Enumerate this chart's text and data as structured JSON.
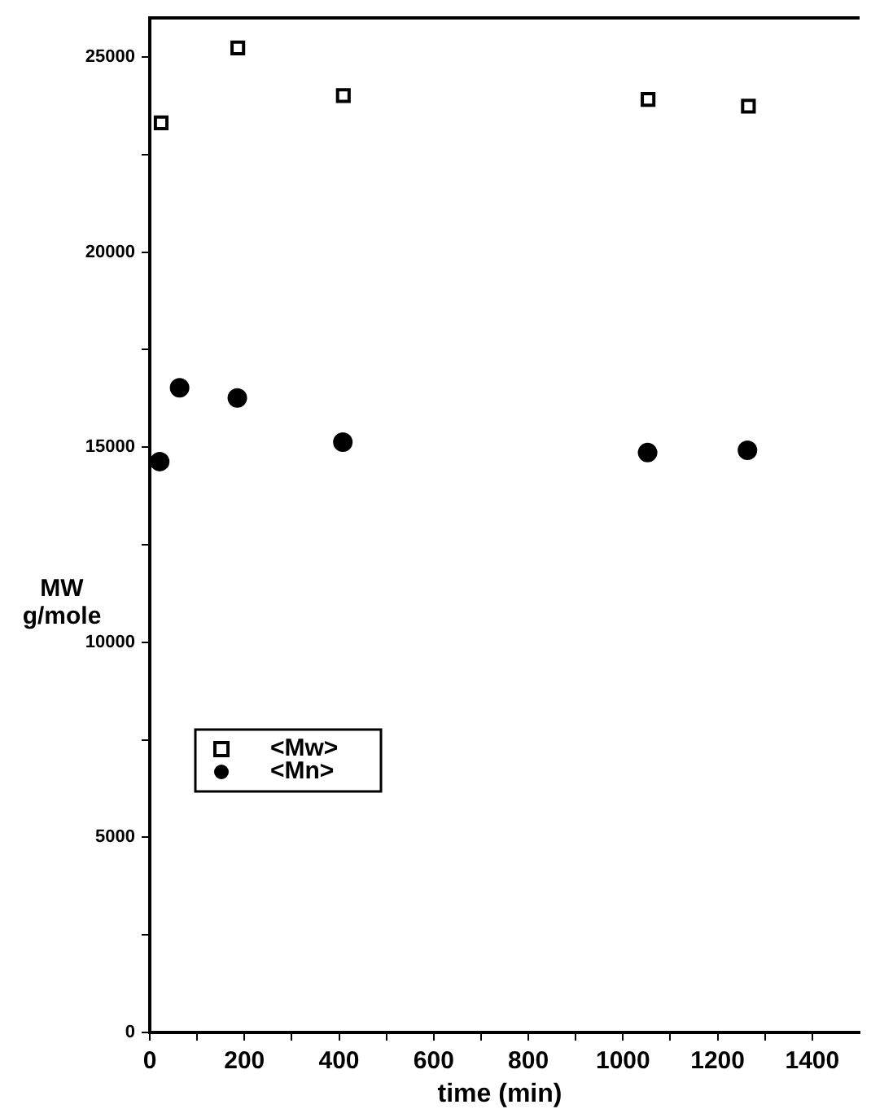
{
  "chart_data": {
    "type": "scatter",
    "xlabel": "time (min)",
    "ylabel": "MW\ng/mole",
    "xlim": [
      0,
      1500
    ],
    "ylim": [
      0,
      26000
    ],
    "xticks": [
      0,
      {
        "value": 100,
        "label": null
      },
      200,
      {
        "value": 300,
        "label": null
      },
      400,
      {
        "value": 500,
        "label": null
      },
      600,
      {
        "value": 700,
        "label": null
      },
      800,
      {
        "value": 900,
        "label": null
      },
      1000,
      {
        "value": 1100,
        "label": null
      },
      1200,
      {
        "value": 1300,
        "label": null
      },
      1400
    ],
    "yticks": [
      0,
      {
        "value": 2500,
        "label": null
      },
      5000,
      {
        "value": 7500,
        "label": null
      },
      10000,
      {
        "value": 12500,
        "label": null
      },
      15000,
      {
        "value": 17500,
        "label": null
      },
      20000,
      {
        "value": 22500,
        "label": null
      },
      25000
    ],
    "grid": false,
    "legend": "bottom left",
    "series": [
      {
        "name": "<Mw>",
        "color": "#000000",
        "marker": "square",
        "x": [
          24,
          186,
          409,
          1053,
          1265
        ],
        "values": [
          23310,
          25230,
          24010,
          23910,
          23740
        ]
      },
      {
        "name": "<Mn>",
        "color": "#000000",
        "marker": "circle",
        "x": [
          21,
          63,
          185,
          408,
          1052,
          1263
        ],
        "values": [
          14630,
          16520,
          16260,
          15130,
          14860,
          14920
        ]
      }
    ]
  }
}
